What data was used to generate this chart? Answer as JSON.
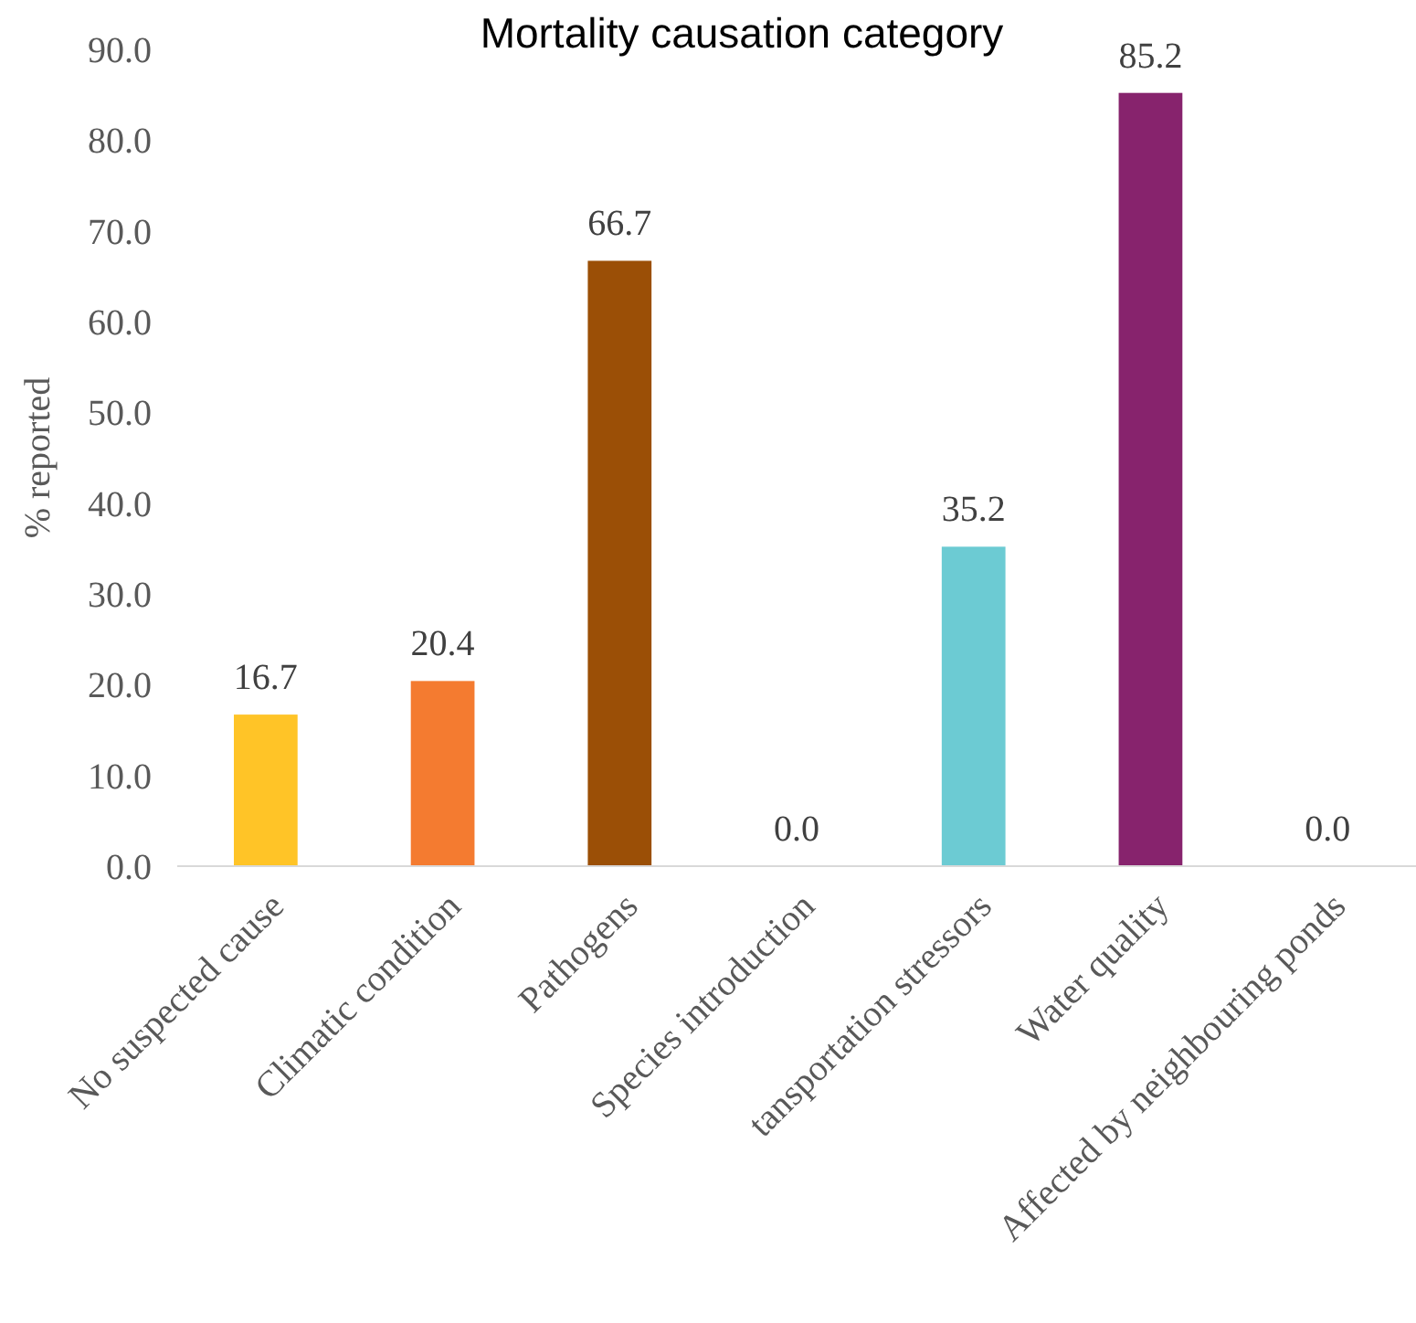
{
  "chart_data": {
    "type": "bar",
    "title": "Mortality causation category",
    "ylabel": "% reported",
    "categories": [
      "No suspected cause",
      "Climatic condition",
      "Pathogens",
      "Species introduction",
      "tansportation stressors",
      "Water quality",
      "Affected by neighbouring ponds"
    ],
    "values": [
      16.7,
      20.4,
      66.7,
      0.0,
      35.2,
      85.2,
      0.0
    ],
    "colors": [
      "#ffc427",
      "#f47b30",
      "#9b4f06",
      "#7f7f7f",
      "#6ccbd3",
      "#87236d",
      "#7f7f7f"
    ],
    "value_labels": [
      "16.7",
      "20.4",
      "66.7",
      "0.0",
      "35.2",
      "85.2",
      "0.0"
    ],
    "ylim": [
      0,
      90
    ],
    "yticks": [
      {
        "value": 0,
        "label": "0.0"
      },
      {
        "value": 10,
        "label": "10.0"
      },
      {
        "value": 20,
        "label": "20.0"
      },
      {
        "value": 30,
        "label": "30.0"
      },
      {
        "value": 40,
        "label": "40.0"
      },
      {
        "value": 50,
        "label": "50.0"
      },
      {
        "value": 60,
        "label": "60.0"
      },
      {
        "value": 70,
        "label": "70.0"
      },
      {
        "value": 80,
        "label": "80.0"
      },
      {
        "value": 90,
        "label": "90.0"
      }
    ]
  }
}
